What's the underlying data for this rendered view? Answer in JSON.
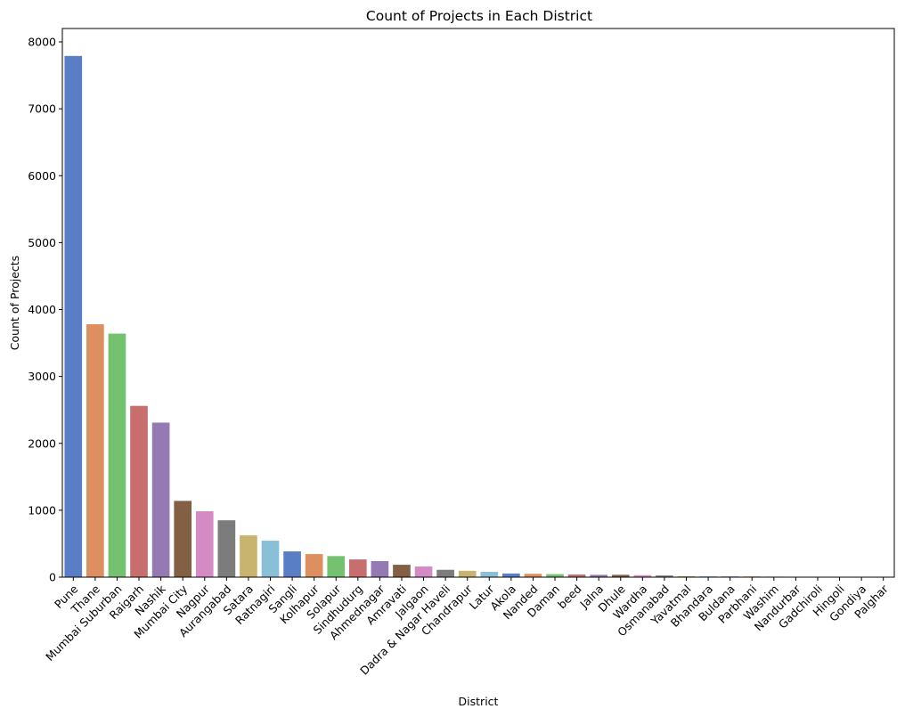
{
  "chart_data": {
    "type": "bar",
    "title": "Count of Projects in Each District",
    "xlabel": "District",
    "ylabel": "Count of Projects",
    "ylim": [
      0,
      8200
    ],
    "yticks": [
      0,
      1000,
      2000,
      3000,
      4000,
      5000,
      6000,
      7000,
      8000
    ],
    "grid": false,
    "legend": "none",
    "palette": [
      "#5a7ec5",
      "#de8f5f",
      "#74c16f",
      "#c96e6e",
      "#9479b2",
      "#835f43",
      "#d48bc3",
      "#7c7c7c",
      "#c8b46f",
      "#89c0d8"
    ],
    "categories": [
      "Pune",
      "Thane",
      "Mumbai Suburban",
      "Raigarh",
      "Nashik",
      "Mumbai City",
      "Nagpur",
      "Aurangabad",
      "Satara",
      "Ratnagiri",
      "Sangli",
      "Kolhapur",
      "Solapur",
      "Sindhudurg",
      "Ahmednagar",
      "Amravati",
      "Jalgaon",
      "Dadra & Nagar Haveli",
      "Chandrapur",
      "Latur",
      "Akola",
      "Nanded",
      "Daman",
      "beed",
      "Jalna",
      "Dhule",
      "Wardha",
      "Osmanabad",
      "Yavatmal",
      "Bhandara",
      "Buldana",
      "Parbhani",
      "Washim",
      "Nandurbar",
      "Gadchiroli",
      "Hingoli",
      "Gondiya",
      "Palghar"
    ],
    "values": [
      7790,
      3780,
      3640,
      2560,
      2310,
      1140,
      985,
      850,
      625,
      545,
      385,
      345,
      315,
      265,
      240,
      185,
      160,
      110,
      95,
      80,
      55,
      50,
      45,
      40,
      35,
      35,
      30,
      25,
      15,
      12,
      10,
      10,
      8,
      5,
      4,
      3,
      2,
      1
    ]
  }
}
